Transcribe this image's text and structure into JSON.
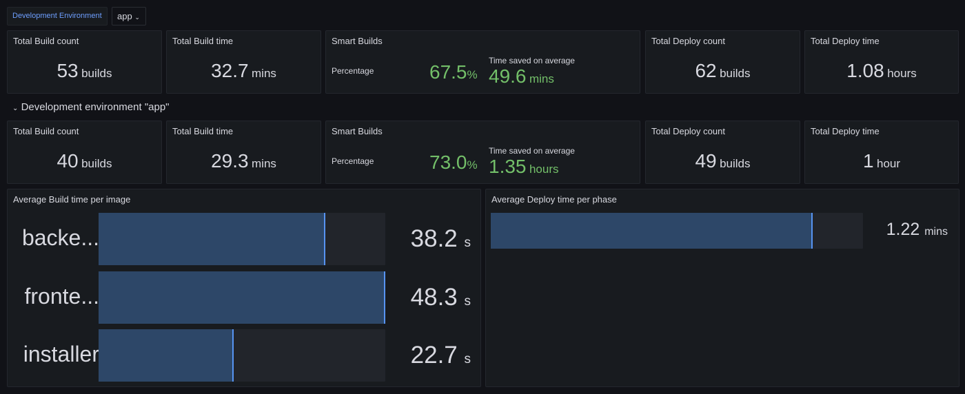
{
  "variables": {
    "environment_label": "Development Environment",
    "environment_value": "app"
  },
  "summary": [
    {
      "title": "Total Build count",
      "value": "53",
      "unit": "builds"
    },
    {
      "title": "Total Build time",
      "value": "32.7",
      "unit": "mins"
    },
    {
      "title": "Smart Builds",
      "pct_label": "Percentage",
      "pct_value": "67.5",
      "pct_unit": "%",
      "saved_label": "Time saved on average",
      "saved_value": "49.6",
      "saved_unit": "mins"
    },
    {
      "title": "Total Deploy count",
      "value": "62",
      "unit": "builds"
    },
    {
      "title": "Total Deploy time",
      "value": "1.08",
      "unit": "hours"
    }
  ],
  "row": {
    "title": "Development environment \"app\"",
    "chevron": "chevron-down-icon"
  },
  "app": [
    {
      "title": "Total Build count",
      "value": "40",
      "unit": "builds"
    },
    {
      "title": "Total Build time",
      "value": "29.3",
      "unit": "mins"
    },
    {
      "title": "Smart Builds",
      "pct_label": "Percentage",
      "pct_value": "73.0",
      "pct_unit": "%",
      "saved_label": "Time saved on average",
      "saved_value": "1.35",
      "saved_unit": "hours"
    },
    {
      "title": "Total Deploy count",
      "value": "49",
      "unit": "builds"
    },
    {
      "title": "Total Deploy time",
      "value": "1",
      "unit": "hour"
    }
  ],
  "build_per_image": {
    "title": "Average Build time per image",
    "max": 48.3,
    "items": [
      {
        "label": "backe...",
        "value": "38.2",
        "num": 38.2,
        "unit": "s"
      },
      {
        "label": "fronte...",
        "value": "48.3",
        "num": 48.3,
        "unit": "s"
      },
      {
        "label": "installer",
        "value": "22.7",
        "num": 22.7,
        "unit": "s"
      }
    ]
  },
  "deploy_per_phase": {
    "title": "Average Deploy time per phase",
    "items": [
      {
        "value": "1.22",
        "unit": "mins",
        "fill_fraction": 0.865
      }
    ]
  },
  "colors": {
    "accent": "#6e9fff",
    "green": "#73bf69",
    "bar": "#2d4768",
    "bar_edge": "#5794f2"
  }
}
